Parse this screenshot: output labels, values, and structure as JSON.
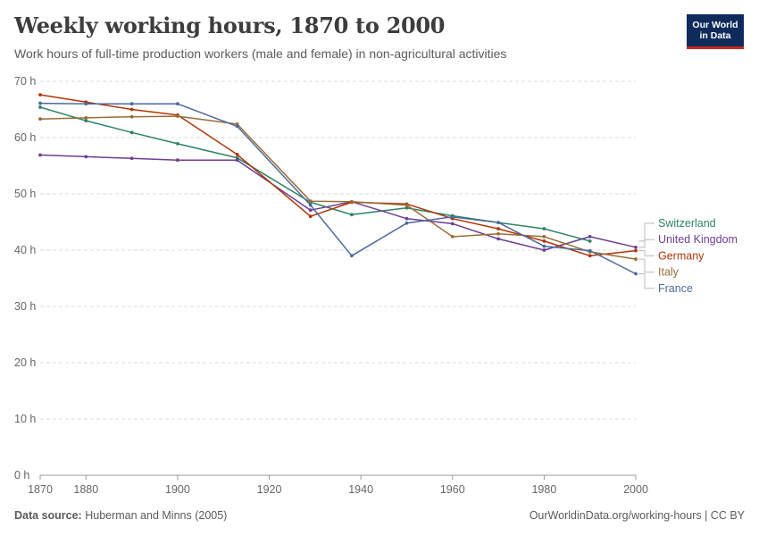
{
  "header": {
    "title": "Weekly working hours, 1870 to 2000",
    "subtitle": "Work hours of full-time production workers (male and female) in non-agricultural activities"
  },
  "logo": {
    "line1": "Our World",
    "line2": "in Data",
    "bg_color": "#0f2b5b",
    "accent_color": "#ce261e"
  },
  "footer": {
    "source_label": "Data source:",
    "source_text": "Huberman and Minns (2005)",
    "link_text": "OurWorldinData.org/working-hours | CC BY"
  },
  "chart_data": {
    "type": "line",
    "title": "Weekly working hours, 1870 to 2000",
    "subtitle": "Work hours of full-time production workers (male and female) in non-agricultural activities",
    "xlim": [
      1870,
      2000
    ],
    "ylim": [
      0,
      70
    ],
    "x_ticks": [
      {
        "value": 1870,
        "label": "1870"
      },
      {
        "value": 1880,
        "label": "1880"
      },
      {
        "value": 1900,
        "label": "1900"
      },
      {
        "value": 1920,
        "label": "1920"
      },
      {
        "value": 1940,
        "label": "1940"
      },
      {
        "value": 1960,
        "label": "1960"
      },
      {
        "value": 1980,
        "label": "1980"
      },
      {
        "value": 2000,
        "label": "2000"
      }
    ],
    "y_ticks": [
      {
        "value": 0,
        "label": "0 h"
      },
      {
        "value": 10,
        "label": "10 h"
      },
      {
        "value": 20,
        "label": "20 h"
      },
      {
        "value": 30,
        "label": "30 h"
      },
      {
        "value": 40,
        "label": "40 h"
      },
      {
        "value": 50,
        "label": "50 h"
      },
      {
        "value": 60,
        "label": "60 h"
      },
      {
        "value": 70,
        "label": "70 h"
      }
    ],
    "grid": "horizontal dashed",
    "legend": "right, labels at line ends",
    "series": [
      {
        "name": "Switzerland",
        "color": "#2c8465",
        "points": [
          [
            1870,
            65.4
          ],
          [
            1880,
            63.0
          ],
          [
            1890,
            60.9
          ],
          [
            1900,
            58.9
          ],
          [
            1913,
            56.4
          ],
          [
            1929,
            48.5
          ],
          [
            1938,
            46.3
          ],
          [
            1950,
            47.5
          ],
          [
            1960,
            46.1
          ],
          [
            1970,
            44.9
          ],
          [
            1980,
            43.8
          ],
          [
            1990,
            41.6
          ]
        ]
      },
      {
        "name": "United Kingdom",
        "color": "#6d3e91",
        "points": [
          [
            1870,
            56.9
          ],
          [
            1880,
            56.6
          ],
          [
            1890,
            56.3
          ],
          [
            1900,
            56.0
          ],
          [
            1913,
            56.0
          ],
          [
            1929,
            47.1
          ],
          [
            1938,
            48.6
          ],
          [
            1950,
            45.6
          ],
          [
            1960,
            44.7
          ],
          [
            1970,
            42.0
          ],
          [
            1980,
            40.0
          ],
          [
            1990,
            42.4
          ],
          [
            2000,
            40.5
          ]
        ]
      },
      {
        "name": "Germany",
        "color": "#b13507",
        "points": [
          [
            1870,
            67.6
          ],
          [
            1880,
            66.3
          ],
          [
            1890,
            65.0
          ],
          [
            1900,
            64.0
          ],
          [
            1913,
            57.0
          ],
          [
            1929,
            46.0
          ],
          [
            1938,
            48.5
          ],
          [
            1950,
            48.2
          ],
          [
            1960,
            45.6
          ],
          [
            1970,
            43.8
          ],
          [
            1980,
            41.6
          ],
          [
            1990,
            39.0
          ],
          [
            2000,
            39.9
          ]
        ]
      },
      {
        "name": "Italy",
        "color": "#996d39",
        "points": [
          [
            1870,
            63.3
          ],
          [
            1880,
            63.5
          ],
          [
            1890,
            63.7
          ],
          [
            1900,
            63.8
          ],
          [
            1913,
            62.4
          ],
          [
            1929,
            48.7
          ],
          [
            1938,
            48.6
          ],
          [
            1950,
            48.0
          ],
          [
            1960,
            42.4
          ],
          [
            1970,
            42.9
          ],
          [
            1980,
            42.4
          ],
          [
            1990,
            39.7
          ],
          [
            2000,
            38.4
          ]
        ]
      },
      {
        "name": "France",
        "color": "#4c6a9c",
        "points": [
          [
            1870,
            66.1
          ],
          [
            1880,
            66.0
          ],
          [
            1890,
            66.0
          ],
          [
            1900,
            66.0
          ],
          [
            1913,
            62.0
          ],
          [
            1929,
            48.0
          ],
          [
            1938,
            39.0
          ],
          [
            1950,
            44.8
          ],
          [
            1960,
            45.9
          ],
          [
            1970,
            44.9
          ],
          [
            1980,
            40.7
          ],
          [
            1990,
            39.9
          ],
          [
            2000,
            35.8
          ]
        ]
      }
    ]
  }
}
